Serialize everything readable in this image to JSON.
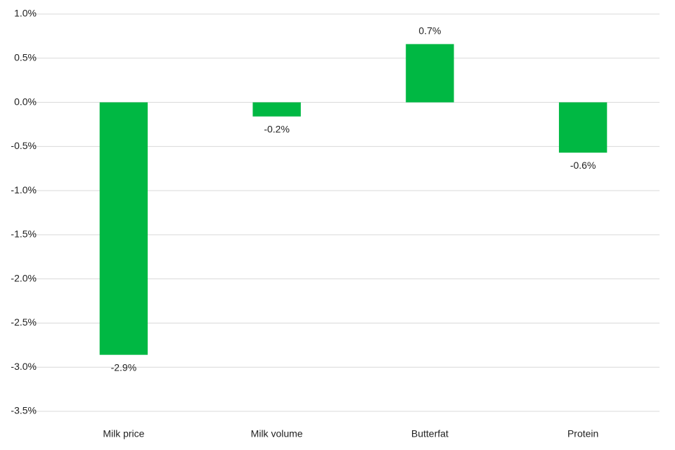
{
  "chart_data": {
    "type": "bar",
    "categories": [
      "Milk price",
      "Milk volume",
      "Butterfat",
      "Protein"
    ],
    "values": [
      -2.86,
      -0.16,
      0.66,
      -0.57
    ],
    "value_labels": [
      "-2.9%",
      "-0.2%",
      "0.7%",
      "-0.6%"
    ],
    "color": "#00b843",
    "ylim": [
      -3.5,
      1.0
    ],
    "yticks": [
      {
        "value": -3.5,
        "label": "-3.5%"
      },
      {
        "value": -3.0,
        "label": "-3.0%"
      },
      {
        "value": -2.5,
        "label": "-2.5%"
      },
      {
        "value": -2.0,
        "label": "-2.0%"
      },
      {
        "value": -1.5,
        "label": "-1.5%"
      },
      {
        "value": -1.0,
        "label": "-1.0%"
      },
      {
        "value": -0.5,
        "label": "-0.5%"
      },
      {
        "value": 0.0,
        "label": "0.0%"
      },
      {
        "value": 0.5,
        "label": "0.5%"
      },
      {
        "value": 1.0,
        "label": "1.0%"
      }
    ],
    "grid": true
  }
}
